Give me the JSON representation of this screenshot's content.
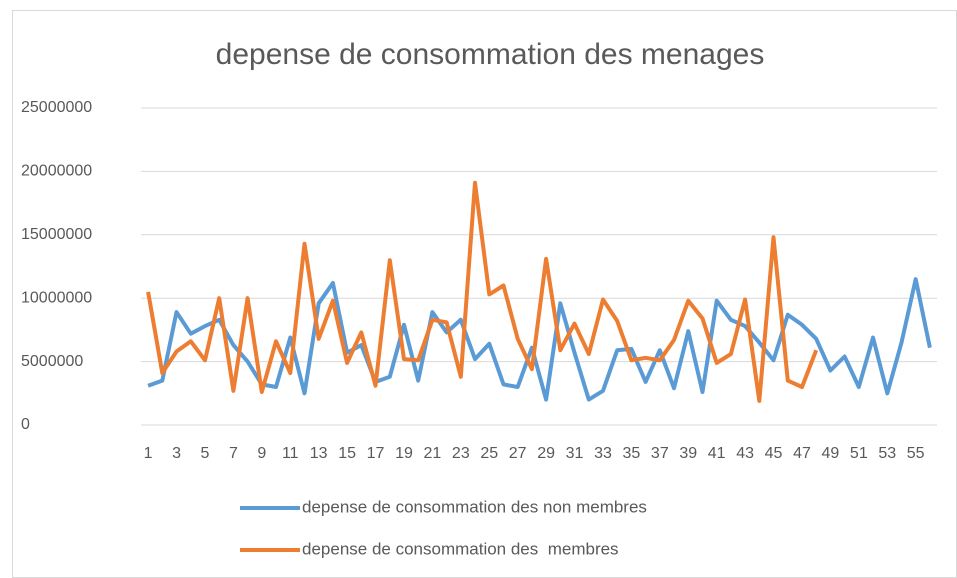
{
  "chart_data": {
    "type": "line",
    "title": "depense de consommation des menages",
    "categories": [
      1,
      null,
      3,
      null,
      5,
      null,
      7,
      null,
      9,
      null,
      11,
      null,
      13,
      null,
      15,
      null,
      17,
      null,
      19,
      null,
      21,
      null,
      23,
      null,
      25,
      null,
      27,
      null,
      29,
      null,
      31,
      null,
      33,
      null,
      35,
      null,
      37,
      null,
      39,
      null,
      41,
      null,
      43,
      null,
      45,
      null,
      47,
      null,
      49,
      null,
      51,
      null,
      53,
      null,
      55,
      null
    ],
    "series": [
      {
        "name": "depense de consommation des non membres",
        "color": "#5b9bd5",
        "values": [
          3100000,
          3500000,
          8900000,
          7200000,
          7800000,
          8300000,
          6300000,
          5000000,
          3200000,
          3000000,
          6900000,
          2500000,
          9600000,
          11200000,
          5700000,
          6300000,
          3400000,
          3800000,
          7900000,
          3500000,
          8900000,
          7300000,
          8300000,
          5200000,
          6400000,
          3200000,
          3000000,
          6100000,
          2000000,
          9600000,
          5700000,
          2000000,
          2700000,
          5900000,
          6000000,
          3400000,
          5900000,
          2900000,
          7400000,
          2600000,
          9800000,
          8300000,
          7800000,
          6500000,
          5100000,
          8700000,
          7900000,
          6800000,
          4300000,
          5400000,
          3000000,
          6900000,
          2500000,
          6500000,
          11500000,
          6100000
        ]
      },
      {
        "name": "depense de consommation des  membres",
        "color": "#ed7d31",
        "values": [
          10500000,
          4100000,
          5800000,
          6600000,
          5100000,
          10000000,
          2700000,
          10000000,
          2600000,
          6600000,
          4100000,
          14300000,
          6800000,
          9800000,
          4900000,
          7300000,
          3100000,
          13000000,
          5200000,
          5100000,
          8300000,
          8100000,
          3800000,
          19100000,
          10300000,
          11000000,
          6800000,
          4400000,
          13100000,
          5900000,
          8000000,
          5600000,
          9900000,
          8200000,
          5100000,
          5300000,
          5100000,
          6700000,
          9800000,
          8400000,
          4900000,
          5600000,
          9900000,
          1900000,
          14800000,
          3500000,
          3000000,
          5900000,
          null,
          null,
          null,
          null,
          null,
          null,
          null,
          null
        ]
      }
    ],
    "ylim": [
      0,
      25000000
    ],
    "yticks": [
      0,
      5000000,
      10000000,
      15000000,
      20000000,
      25000000
    ],
    "grid": true,
    "legend": "bottom"
  }
}
